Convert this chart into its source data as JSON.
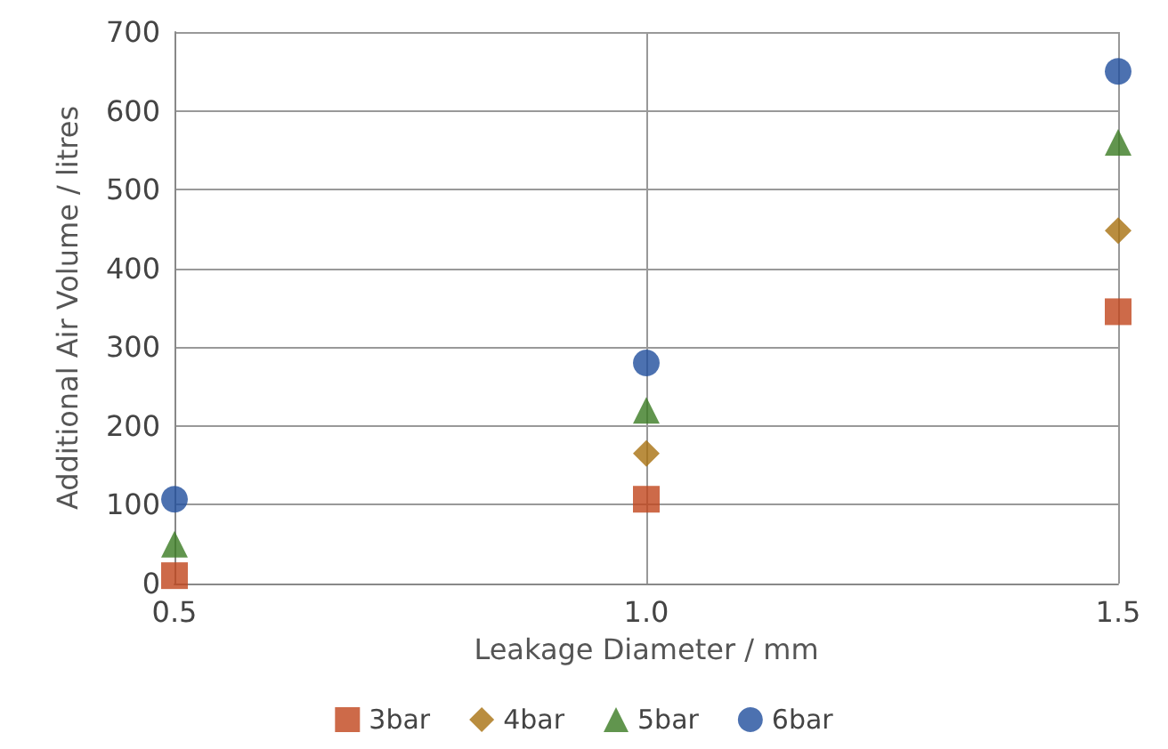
{
  "chart_data": {
    "type": "scatter",
    "xlabel": "Leakage Diameter / mm",
    "ylabel": "Additional Air Volume / litres",
    "x": [
      0.5,
      1.0,
      1.5
    ],
    "series": [
      {
        "name": "3bar",
        "color": "#c0451b",
        "marker": "square",
        "values": [
          10,
          107,
          345
        ]
      },
      {
        "name": "4bar",
        "color": "#a8700f",
        "marker": "diamond",
        "values": [
          null,
          165,
          448
        ]
      },
      {
        "name": "5bar",
        "color": "#3a7a22",
        "marker": "triangle",
        "values": [
          50,
          220,
          560
        ]
      },
      {
        "name": "6bar",
        "color": "#1f4e9c",
        "marker": "circle",
        "values": [
          107,
          280,
          650
        ]
      }
    ],
    "xlim": [
      0.5,
      1.5
    ],
    "xticks": [
      {
        "value": 0.5,
        "label": "0.5"
      },
      {
        "value": 1.0,
        "label": "1.0"
      },
      {
        "value": 1.5,
        "label": "1.5"
      }
    ],
    "ylim": [
      0,
      700
    ],
    "yticks": [
      0,
      100,
      200,
      300,
      400,
      500,
      600,
      700
    ],
    "grid": true,
    "legend": "bottom"
  }
}
